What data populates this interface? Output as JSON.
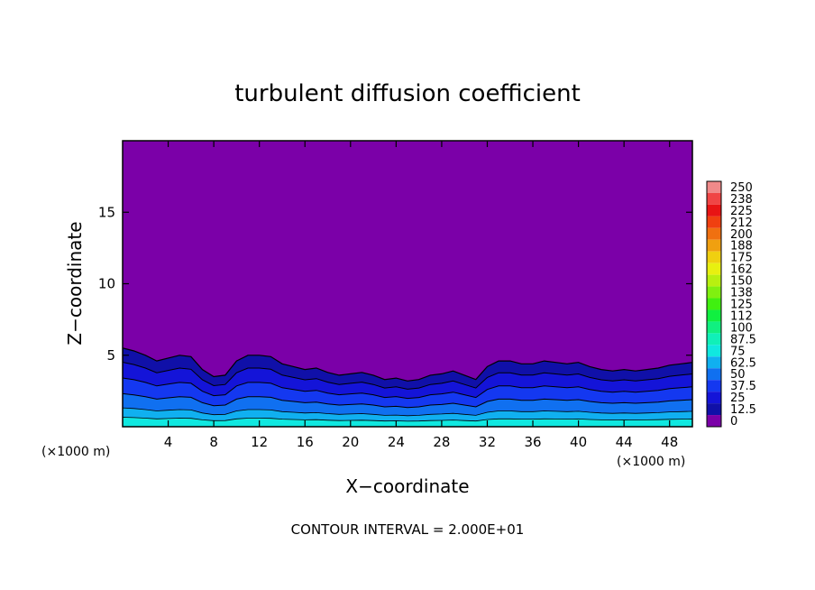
{
  "chart_data": {
    "type": "heatmap",
    "title": "turbulent diffusion coefficient",
    "xlabel": "X−coordinate",
    "ylabel": "Z−coordinate",
    "x_unit": "(×1000 m)",
    "y_unit": "(×1000 m)",
    "xlim": [
      0,
      50
    ],
    "ylim": [
      0,
      20
    ],
    "x_ticks": [
      4,
      8,
      12,
      16,
      20,
      24,
      28,
      32,
      36,
      40,
      44,
      48
    ],
    "y_ticks": [
      5,
      10,
      15
    ],
    "background_value": 0,
    "turbulent_layer_top_profile": {
      "x": [
        0,
        1,
        2,
        3,
        4,
        5,
        6,
        7,
        8,
        9,
        10,
        11,
        12,
        13,
        14,
        15,
        16,
        17,
        18,
        19,
        20,
        21,
        22,
        23,
        24,
        25,
        26,
        27,
        28,
        29,
        30,
        31,
        32,
        33,
        34,
        35,
        36,
        37,
        38,
        39,
        40,
        41,
        42,
        43,
        44,
        45,
        46,
        47,
        48,
        49,
        50
      ],
      "z": [
        5.5,
        5.3,
        5.0,
        4.6,
        4.8,
        5.0,
        4.9,
        4.0,
        3.5,
        3.6,
        4.6,
        5.0,
        5.0,
        4.9,
        4.4,
        4.2,
        4.0,
        4.1,
        3.8,
        3.6,
        3.7,
        3.8,
        3.6,
        3.3,
        3.4,
        3.2,
        3.3,
        3.6,
        3.7,
        3.9,
        3.6,
        3.3,
        4.2,
        4.6,
        4.6,
        4.4,
        4.4,
        4.6,
        4.5,
        4.4,
        4.5,
        4.2,
        4.0,
        3.9,
        4.0,
        3.9,
        4.0,
        4.1,
        4.3,
        4.4,
        4.5
      ]
    },
    "colorbar": {
      "labels": [
        "250",
        "238",
        "225",
        "212",
        "200",
        "188",
        "175",
        "162",
        "150",
        "138",
        "125",
        "112",
        "100",
        "87.5",
        "75",
        "62.5",
        "50",
        "37.5",
        "25",
        "12.5",
        "0"
      ],
      "colors": [
        "#f08a8a",
        "#f04545",
        "#e81414",
        "#f04010",
        "#f07010",
        "#f0a010",
        "#f0d010",
        "#e8f010",
        "#b8f010",
        "#80f010",
        "#40f010",
        "#10f040",
        "#10f080",
        "#10f0b8",
        "#10e8e0",
        "#10b0f0",
        "#1070f0",
        "#1438f0",
        "#1414d8",
        "#1010a8",
        "#7b00a8"
      ]
    },
    "contour_interval_text": "CONTOUR INTERVAL = 2.000E+01"
  }
}
